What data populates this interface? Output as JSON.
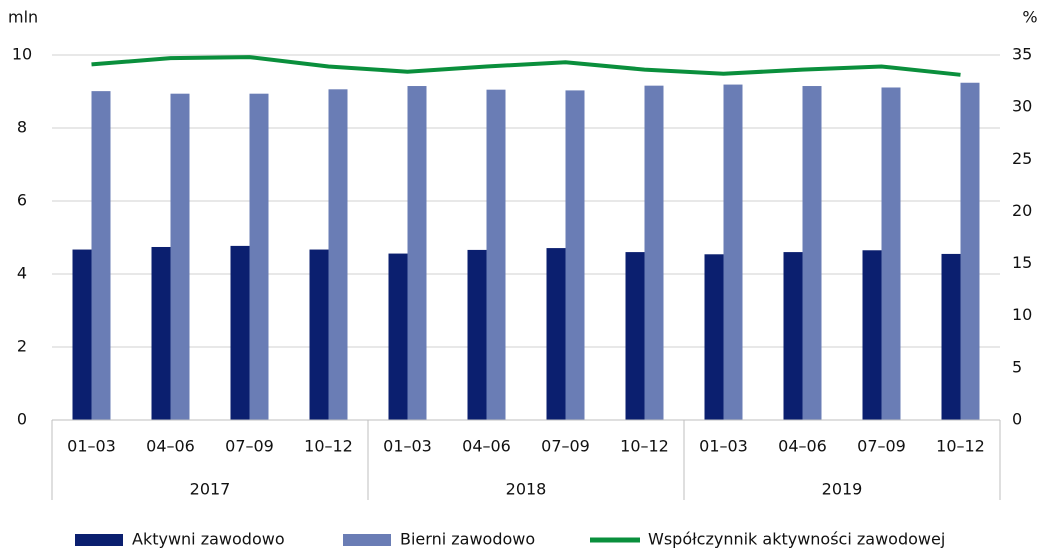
{
  "chart_data": {
    "type": "bar_line",
    "categories": [
      "01–03",
      "04–06",
      "07–09",
      "10–12",
      "01–03",
      "04–06",
      "07–09",
      "10–12",
      "01–03",
      "04–06",
      "07–09",
      "10–12"
    ],
    "category_groups": [
      "2017",
      "2018",
      "2019"
    ],
    "ylabel": "mln",
    "y2label": "%",
    "ylim": [
      0,
      10
    ],
    "yticks": [
      0,
      2,
      4,
      6,
      8,
      10
    ],
    "y2lim": [
      0,
      35
    ],
    "y2ticks": [
      0,
      5,
      10,
      15,
      20,
      25,
      30,
      35
    ],
    "grid": true,
    "legend": "bottom",
    "series": [
      {
        "name": "Aktywni zawodowo",
        "type": "bar",
        "color": "#0b1f6f",
        "values": [
          4.67,
          4.74,
          4.77,
          4.67,
          4.56,
          4.66,
          4.71,
          4.6,
          4.54,
          4.6,
          4.65,
          4.55
        ]
      },
      {
        "name": "Bierni zawodowo",
        "type": "bar",
        "color": "#6a7db5",
        "values": [
          9.01,
          8.94,
          8.94,
          9.06,
          9.15,
          9.05,
          9.03,
          9.16,
          9.19,
          9.15,
          9.11,
          9.24
        ]
      },
      {
        "name": "Współczynnik aktywności zawodowej",
        "type": "line",
        "axis": "y2",
        "color": "#0a8f3c",
        "values": [
          34.1,
          34.7,
          34.8,
          33.9,
          33.4,
          33.9,
          34.3,
          33.6,
          33.2,
          33.6,
          33.9,
          33.1
        ]
      }
    ]
  }
}
